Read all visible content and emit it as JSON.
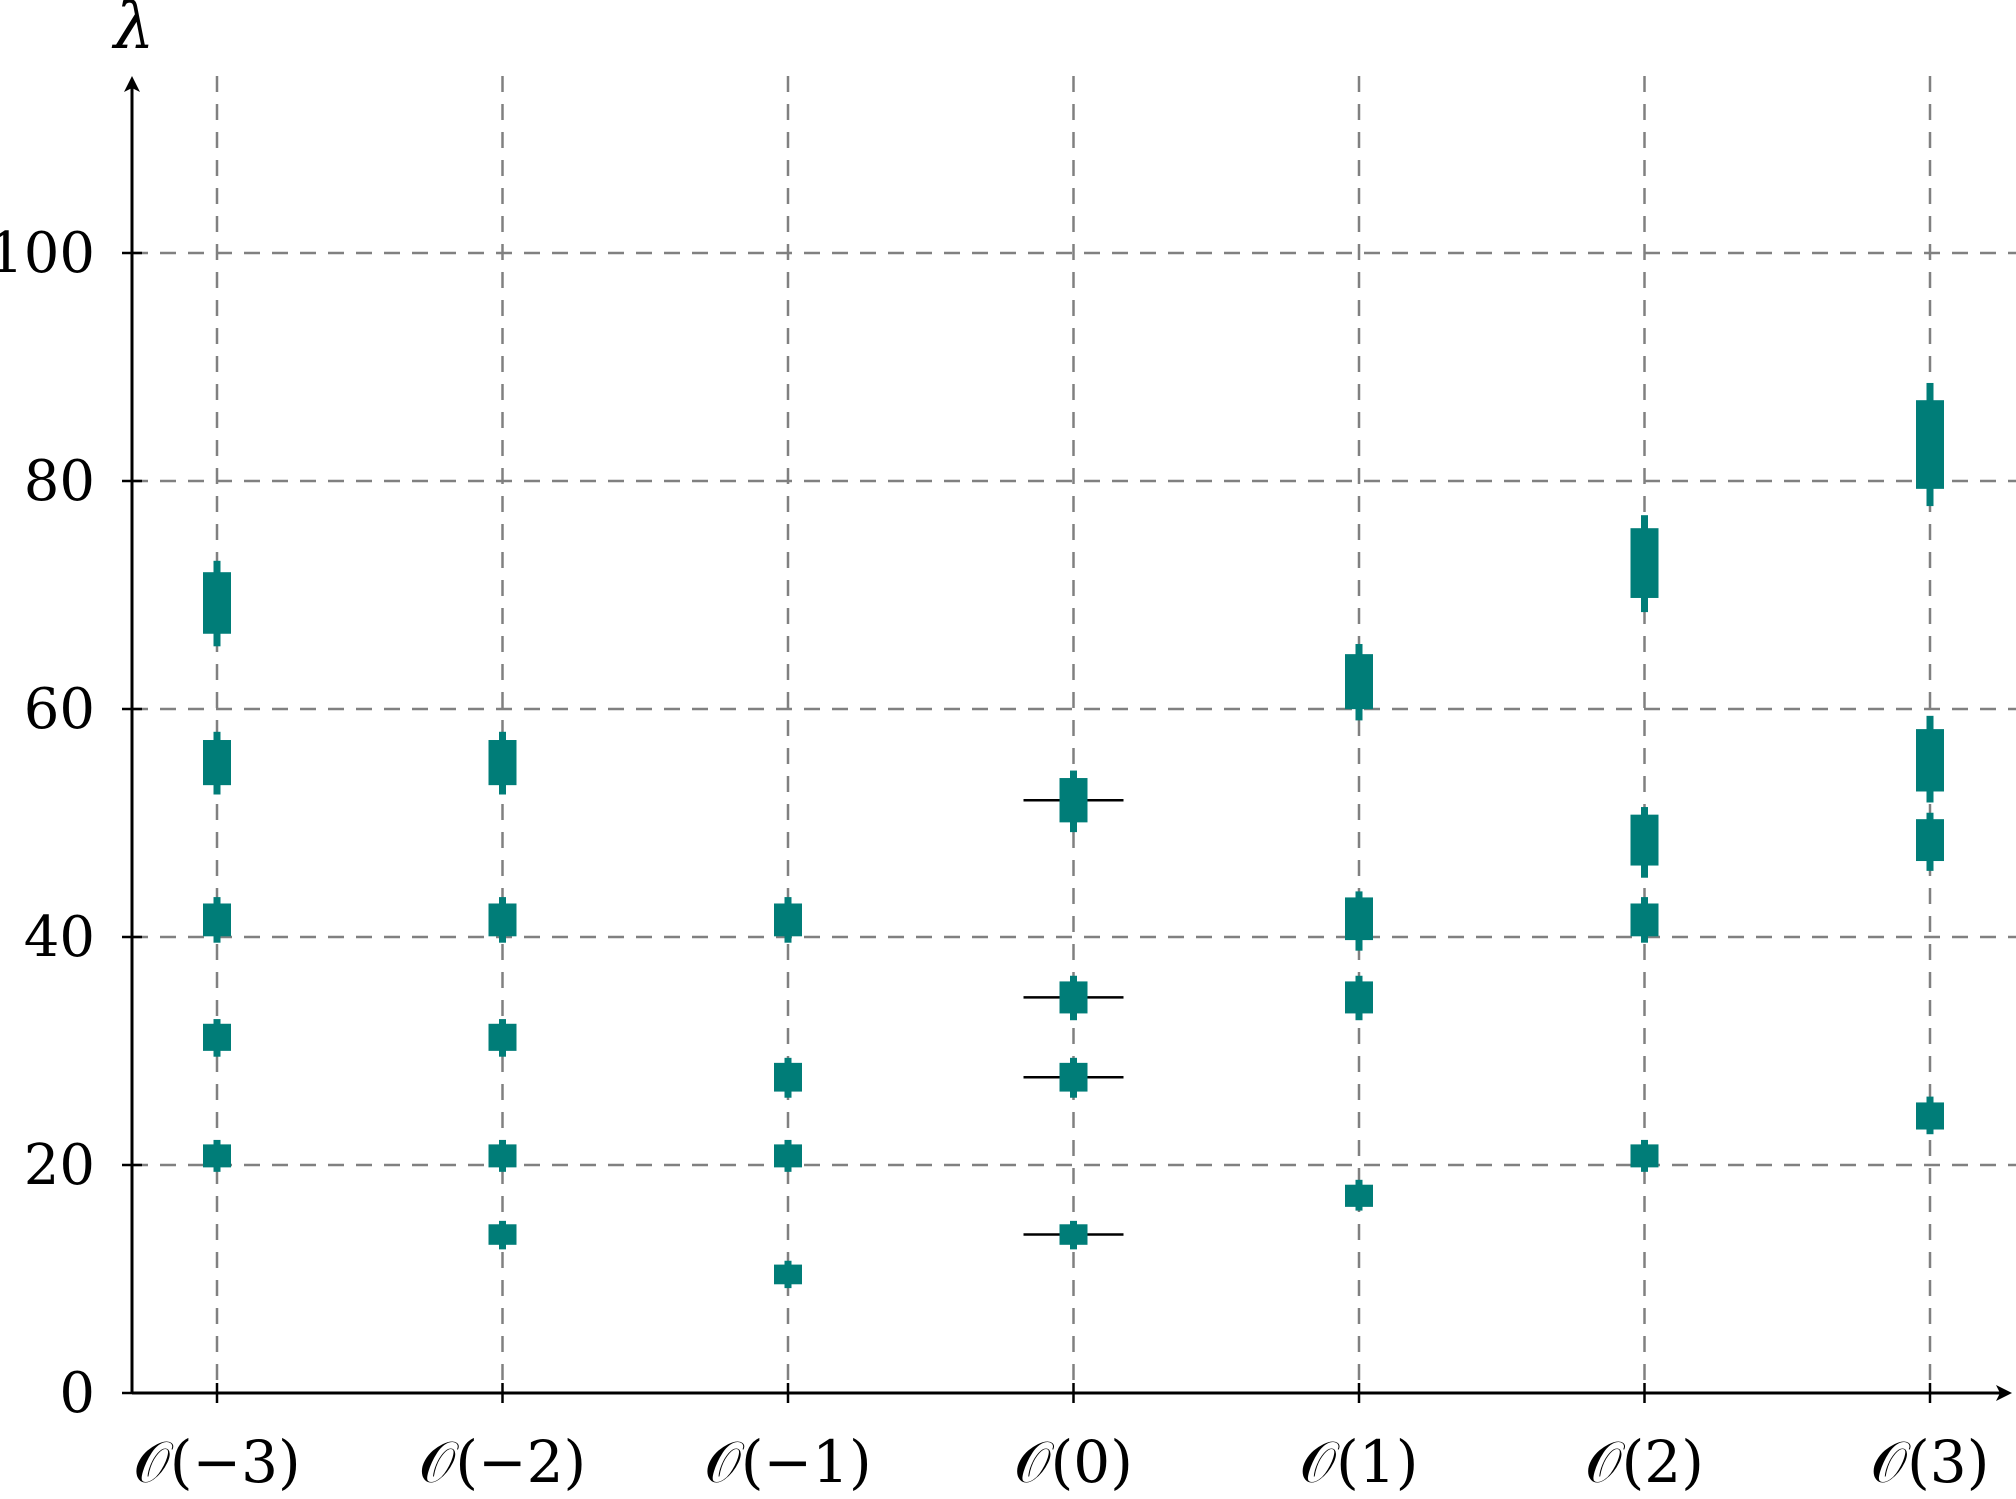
{
  "chart_data": {
    "type": "scatter",
    "ylabel": "λ",
    "xlabel": "",
    "ylim": [
      0,
      115
    ],
    "yticks": [
      0,
      20,
      40,
      60,
      80,
      100
    ],
    "categories": [
      "𝒪(−3)",
      "𝒪(−2)",
      "𝒪(−1)",
      "𝒪(0)",
      "𝒪(1)",
      "𝒪(2)",
      "𝒪(3)"
    ],
    "grid": true,
    "colors": {
      "marker": "#007d78",
      "reference": "#000000",
      "grid": "#808080"
    },
    "series": [
      {
        "values": [
          {
            "category": "𝒪(−3)",
            "lambda": 69.3,
            "low": 65.5,
            "high": 73.0
          },
          {
            "category": "𝒪(−3)",
            "lambda": 55.3,
            "low": 52.5,
            "high": 58.0
          },
          {
            "category": "𝒪(−3)",
            "lambda": 41.5,
            "low": 39.5,
            "high": 43.5
          },
          {
            "category": "𝒪(−3)",
            "lambda": 31.2,
            "low": 29.5,
            "high": 32.8
          },
          {
            "category": "𝒪(−3)",
            "lambda": 20.8,
            "low": 19.4,
            "high": 22.2
          },
          {
            "category": "𝒪(−2)",
            "lambda": 55.3,
            "low": 52.5,
            "high": 58.0
          },
          {
            "category": "𝒪(−2)",
            "lambda": 41.5,
            "low": 39.5,
            "high": 43.5
          },
          {
            "category": "𝒪(−2)",
            "lambda": 31.2,
            "low": 29.5,
            "high": 32.8
          },
          {
            "category": "𝒪(−2)",
            "lambda": 20.8,
            "low": 19.4,
            "high": 22.2
          },
          {
            "category": "𝒪(−2)",
            "lambda": 13.9,
            "low": 12.6,
            "high": 15.1
          },
          {
            "category": "𝒪(−1)",
            "lambda": 41.5,
            "low": 39.5,
            "high": 43.5
          },
          {
            "category": "𝒪(−1)",
            "lambda": 27.7,
            "low": 25.9,
            "high": 29.4
          },
          {
            "category": "𝒪(−1)",
            "lambda": 20.8,
            "low": 19.4,
            "high": 22.2
          },
          {
            "category": "𝒪(−1)",
            "lambda": 10.4,
            "low": 9.2,
            "high": 11.6
          },
          {
            "category": "𝒪(0)",
            "lambda": 52.0,
            "low": 49.2,
            "high": 54.6
          },
          {
            "category": "𝒪(0)",
            "lambda": 34.7,
            "low": 32.7,
            "high": 36.6
          },
          {
            "category": "𝒪(0)",
            "lambda": 27.7,
            "low": 25.9,
            "high": 29.4
          },
          {
            "category": "𝒪(0)",
            "lambda": 13.9,
            "low": 12.6,
            "high": 15.1
          },
          {
            "category": "𝒪(1)",
            "lambda": 62.4,
            "low": 59.0,
            "high": 65.7
          },
          {
            "category": "𝒪(1)",
            "lambda": 41.6,
            "low": 38.8,
            "high": 44.0
          },
          {
            "category": "𝒪(1)",
            "lambda": 34.7,
            "low": 32.7,
            "high": 36.6
          },
          {
            "category": "𝒪(1)",
            "lambda": 17.3,
            "low": 16.0,
            "high": 18.7
          },
          {
            "category": "𝒪(2)",
            "lambda": 72.8,
            "low": 68.5,
            "high": 77.0
          },
          {
            "category": "𝒪(2)",
            "lambda": 48.5,
            "low": 45.2,
            "high": 51.4
          },
          {
            "category": "𝒪(2)",
            "lambda": 41.5,
            "low": 39.5,
            "high": 43.5
          },
          {
            "category": "𝒪(2)",
            "lambda": 20.8,
            "low": 19.4,
            "high": 22.2
          },
          {
            "category": "𝒪(3)",
            "lambda": 83.2,
            "low": 77.8,
            "high": 88.6
          },
          {
            "category": "𝒪(3)",
            "lambda": 55.5,
            "low": 51.8,
            "high": 59.4
          },
          {
            "category": "𝒪(3)",
            "lambda": 48.5,
            "low": 45.8,
            "high": 50.9
          },
          {
            "category": "𝒪(3)",
            "lambda": 24.3,
            "low": 22.7,
            "high": 26.0
          }
        ]
      }
    ],
    "reference_lines": [
      {
        "category": "𝒪(0)",
        "lambda": 52.0
      },
      {
        "category": "𝒪(0)",
        "lambda": 34.7
      },
      {
        "category": "𝒪(0)",
        "lambda": 27.7
      },
      {
        "category": "𝒪(0)",
        "lambda": 13.9
      }
    ]
  }
}
